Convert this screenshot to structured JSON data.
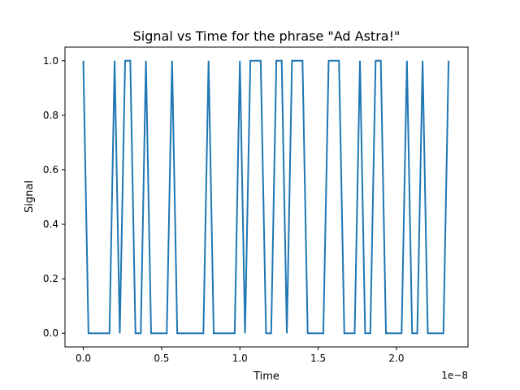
{
  "chart_data": {
    "type": "line",
    "title": "Signal vs Time for the phrase \"Ad Astra!\"",
    "xlabel": "Time",
    "ylabel": "Signal",
    "x_offset_label": "1e−8",
    "xlim": [
      -0.117,
      2.457
    ],
    "ylim": [
      -0.05,
      1.05
    ],
    "x_ticks": [
      0.0,
      0.5,
      1.0,
      1.5,
      2.0
    ],
    "x_tick_labels": [
      "0.0",
      "0.5",
      "1.0",
      "1.5",
      "2.0"
    ],
    "y_ticks": [
      0.0,
      0.2,
      0.4,
      0.6,
      0.8,
      1.0
    ],
    "y_tick_labels": [
      "0.0",
      "0.2",
      "0.4",
      "0.6",
      "0.8",
      "1.0"
    ],
    "grid": false,
    "series": [
      {
        "color": "#1f77b4",
        "x_scale_note": "",
        "x": [
          0.0,
          0.033,
          0.167,
          0.2,
          0.233,
          0.267,
          0.3,
          0.333,
          0.367,
          0.4,
          0.433,
          0.533,
          0.567,
          0.6,
          0.767,
          0.8,
          0.833,
          0.967,
          1.0,
          1.033,
          1.067,
          1.133,
          1.167,
          1.2,
          1.233,
          1.267,
          1.3,
          1.333,
          1.4,
          1.433,
          1.467,
          1.533,
          1.567,
          1.633,
          1.667,
          1.7,
          1.733,
          1.767,
          1.8,
          1.833,
          1.867,
          1.9,
          1.933,
          2.033,
          2.067,
          2.1,
          2.133,
          2.167,
          2.2,
          2.3,
          2.333
        ],
        "y": [
          1,
          0,
          0,
          1,
          0,
          1,
          1,
          0,
          0,
          1,
          0,
          0,
          1,
          0,
          0,
          1,
          0,
          0,
          1,
          0,
          1,
          1,
          0,
          0,
          1,
          1,
          0,
          1,
          1,
          0,
          0,
          0,
          1,
          1,
          0,
          0,
          0,
          1,
          0,
          0,
          1,
          1,
          0,
          0,
          1,
          0,
          0,
          1,
          0,
          0,
          1
        ]
      }
    ]
  }
}
